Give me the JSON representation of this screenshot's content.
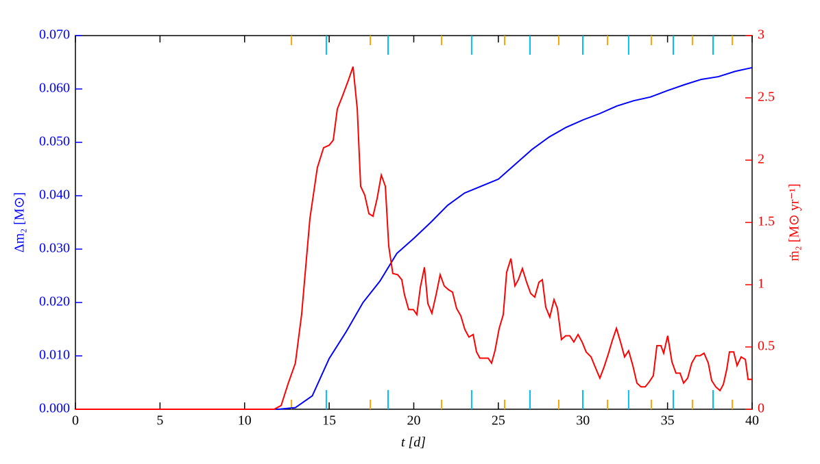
{
  "chart_data": {
    "type": "line",
    "xlabel": "t  [d]",
    "ylabel": "Δm₂  [M⊙]",
    "y2label": "ṁ₂  [M⊙ yr⁻¹]",
    "xlim": [
      0,
      40
    ],
    "xticks": [
      0,
      5,
      10,
      15,
      20,
      25,
      30,
      35,
      40
    ],
    "ylim": [
      0,
      0.07
    ],
    "yticks": [
      {
        "value": 0,
        "label": "0.000"
      },
      {
        "value": 0.01,
        "label": "0.010"
      },
      {
        "value": 0.02,
        "label": "0.020"
      },
      {
        "value": 0.03,
        "label": "0.030"
      },
      {
        "value": 0.04,
        "label": "0.040"
      },
      {
        "value": 0.05,
        "label": "0.050"
      },
      {
        "value": 0.06,
        "label": "0.060"
      },
      {
        "value": 0.07,
        "label": "0.070"
      }
    ],
    "y2lim": [
      0,
      3
    ],
    "y2ticks": [
      0,
      0.5,
      1,
      1.5,
      2,
      2.5,
      3
    ],
    "ycolor": "#0000ff",
    "y2color": "#ff0000",
    "series": [
      {
        "color": "#0000ff",
        "axis": "y",
        "x": [
          0,
          12,
          13,
          14,
          15,
          16,
          17,
          18,
          19,
          20,
          21,
          22,
          23,
          24,
          25,
          26,
          27,
          28,
          29,
          30,
          31,
          32,
          33,
          34,
          35,
          36,
          37,
          38,
          39,
          40
        ],
        "values": [
          0,
          0,
          0.0003,
          0.0025,
          0.0095,
          0.0145,
          0.02,
          0.024,
          0.0292,
          0.032,
          0.035,
          0.0382,
          0.0405,
          0.0418,
          0.0431,
          0.0459,
          0.0487,
          0.051,
          0.0528,
          0.0542,
          0.0554,
          0.0568,
          0.0578,
          0.0585,
          0.0597,
          0.0608,
          0.0618,
          0.0623,
          0.0633,
          0.064
        ]
      },
      {
        "color": "#ff0000",
        "axis": "y2",
        "x": [
          0,
          11.75,
          12.16,
          12.56,
          13.0,
          13.37,
          13.86,
          14.3,
          14.67,
          15.0,
          15.24,
          15.48,
          15.8,
          16.13,
          16.41,
          16.66,
          16.86,
          17.1,
          17.35,
          17.59,
          17.83,
          18.08,
          18.32,
          18.52,
          18.76,
          19.05,
          19.29,
          19.45,
          19.7,
          19.98,
          20.18,
          20.39,
          20.63,
          20.83,
          21.07,
          21.32,
          21.56,
          21.8,
          22.05,
          22.29,
          22.53,
          22.78,
          23.02,
          23.26,
          23.51,
          23.71,
          23.91,
          24.15,
          24.4,
          24.6,
          24.8,
          25.05,
          25.29,
          25.49,
          25.74,
          25.98,
          26.18,
          26.42,
          26.67,
          26.91,
          27.15,
          27.4,
          27.6,
          27.8,
          28.04,
          28.29,
          28.49,
          28.73,
          28.98,
          29.22,
          29.46,
          29.71,
          29.95,
          30.19,
          30.48,
          30.72,
          31.0,
          31.25,
          31.49,
          31.73,
          31.98,
          32.22,
          32.46,
          32.7,
          32.95,
          33.19,
          33.43,
          33.68,
          33.92,
          34.16,
          34.37,
          34.61,
          34.77,
          35.01,
          35.26,
          35.5,
          35.74,
          35.95,
          36.19,
          36.43,
          36.68,
          36.92,
          37.16,
          37.41,
          37.61,
          37.85,
          38.1,
          38.3,
          38.5,
          38.66,
          38.91,
          39.11,
          39.35,
          39.6,
          39.76,
          40.0
        ],
        "values": [
          0,
          0,
          0.03,
          0.2,
          0.37,
          0.76,
          1.53,
          1.94,
          2.1,
          2.12,
          2.16,
          2.41,
          2.52,
          2.64,
          2.75,
          2.41,
          1.79,
          1.72,
          1.57,
          1.55,
          1.69,
          1.88,
          1.79,
          1.31,
          1.09,
          1.08,
          1.04,
          0.92,
          0.8,
          0.8,
          0.76,
          0.98,
          1.14,
          0.85,
          0.77,
          0.92,
          1.08,
          0.99,
          0.96,
          0.94,
          0.81,
          0.75,
          0.64,
          0.58,
          0.6,
          0.46,
          0.41,
          0.41,
          0.41,
          0.37,
          0.47,
          0.65,
          0.76,
          1.1,
          1.21,
          0.99,
          1.04,
          1.13,
          1.02,
          0.93,
          0.9,
          1.02,
          1.04,
          0.82,
          0.74,
          0.88,
          0.81,
          0.56,
          0.59,
          0.59,
          0.54,
          0.6,
          0.54,
          0.46,
          0.42,
          0.34,
          0.25,
          0.34,
          0.44,
          0.55,
          0.65,
          0.54,
          0.42,
          0.47,
          0.35,
          0.21,
          0.18,
          0.18,
          0.22,
          0.27,
          0.51,
          0.51,
          0.45,
          0.59,
          0.38,
          0.29,
          0.29,
          0.21,
          0.25,
          0.37,
          0.43,
          0.43,
          0.45,
          0.37,
          0.23,
          0.18,
          0.15,
          0.2,
          0.32,
          0.46,
          0.46,
          0.35,
          0.42,
          0.4,
          0.24,
          0.24
        ]
      }
    ],
    "markers": [
      {
        "color": "#ffa500",
        "x": [
          12.77,
          17.43,
          21.64,
          25.37,
          28.57,
          31.45,
          34.04,
          36.47,
          38.83
        ]
      },
      {
        "color": "#00bfff",
        "x": [
          14.83,
          18.48,
          23.42,
          26.87,
          29.99,
          32.7,
          35.34,
          37.69
        ]
      }
    ]
  }
}
